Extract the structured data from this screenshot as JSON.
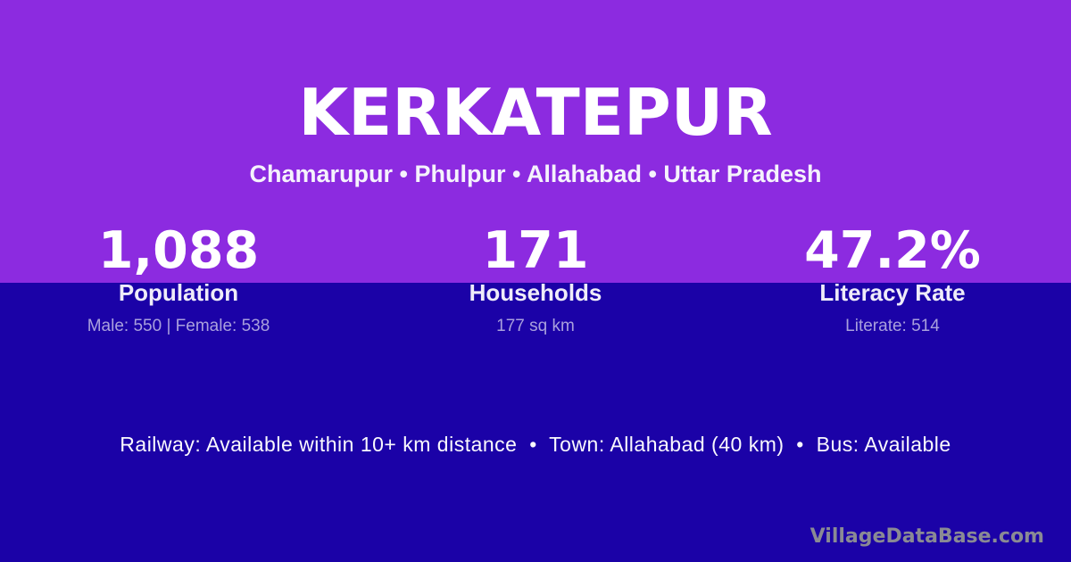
{
  "theme": {
    "purple": "#8C2BE0",
    "blue": "#1B02A7",
    "title-color": "#FFFFFF",
    "label-color": "#EFECF9",
    "detail-color": "#A9A0DD",
    "watermark-color": "#8A8A94"
  },
  "header": {
    "title": "KERKATEPUR",
    "location": "Chamarupur • Phulpur • Allahabad • Uttar Pradesh"
  },
  "stats": [
    {
      "value": "1,088",
      "label": "Population",
      "detail": "Male: 550 | Female: 538"
    },
    {
      "value": "171",
      "label": "Households",
      "detail": "177 sq km"
    },
    {
      "value": "47.2%",
      "label": "Literacy Rate",
      "detail": "Literate: 514"
    }
  ],
  "footer": {
    "info": "Railway: Available within 10+ km distance  •  Town: Allahabad (40 km)  •  Bus: Available",
    "watermark": "VillageDataBase.com"
  }
}
